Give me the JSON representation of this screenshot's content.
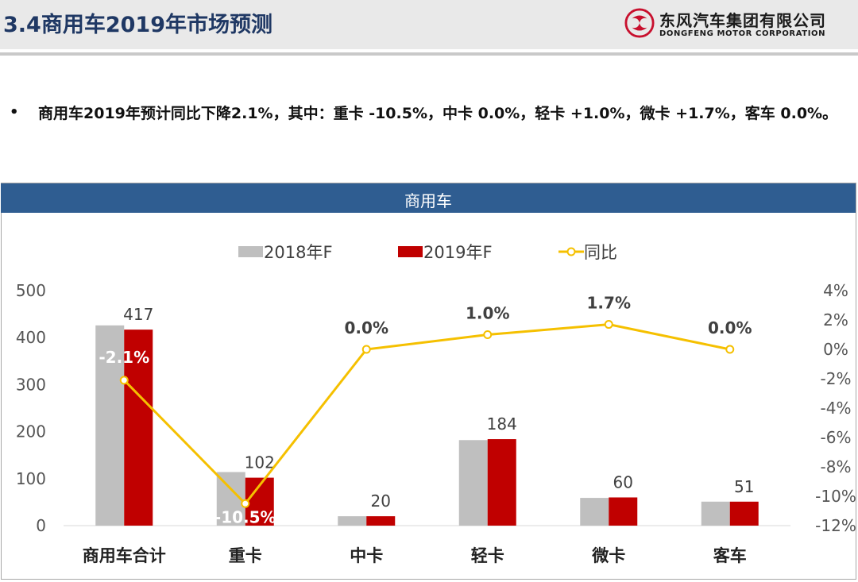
{
  "header": {
    "title": "3.4商用车2019年市场预测",
    "logo_cn": "东风汽车集团有限公司",
    "logo_en": "DONGFENG MOTOR CORPORATION"
  },
  "bullet": "•",
  "summary": "商用车2019年预计同比下降2.1%，其中：重卡 -10.5%，中卡 0.0%，轻卡 +1.0%，微卡 +1.7%，客车 0.0%。",
  "chart_data": {
    "type": "bar",
    "title": "商用车",
    "categories": [
      "商用车合计",
      "重卡",
      "中卡",
      "轻卡",
      "微卡",
      "客车"
    ],
    "series": [
      {
        "name": "2018年F",
        "type": "bar",
        "axis": "left",
        "color": "#bfbfbf",
        "values": [
          426,
          114,
          20,
          182,
          59,
          51
        ]
      },
      {
        "name": "2019年F",
        "type": "bar",
        "axis": "left",
        "color": "#c00000",
        "values": [
          417,
          102,
          20,
          184,
          60,
          51
        ],
        "labels": [
          "417",
          "102",
          "20",
          "184",
          "60",
          "51"
        ]
      },
      {
        "name": "同比",
        "type": "line",
        "axis": "right",
        "color": "#f5c000",
        "values": [
          -2.1,
          -10.5,
          0.0,
          1.0,
          1.7,
          0.0
        ],
        "labels": [
          "-2.1%",
          "-10.5%",
          "0.0%",
          "1.0%",
          "1.7%",
          "0.0%"
        ]
      }
    ],
    "left_axis": {
      "min": 0,
      "max": 500,
      "ticks": [
        "0",
        "100",
        "200",
        "300",
        "400",
        "500"
      ]
    },
    "right_axis": {
      "min": -12,
      "max": 4,
      "ticks": [
        "-12%",
        "-10%",
        "-8%",
        "-6%",
        "-4%",
        "-2%",
        "0%",
        "2%",
        "4%"
      ]
    },
    "legend": {
      "position": "top"
    },
    "grid": false
  }
}
